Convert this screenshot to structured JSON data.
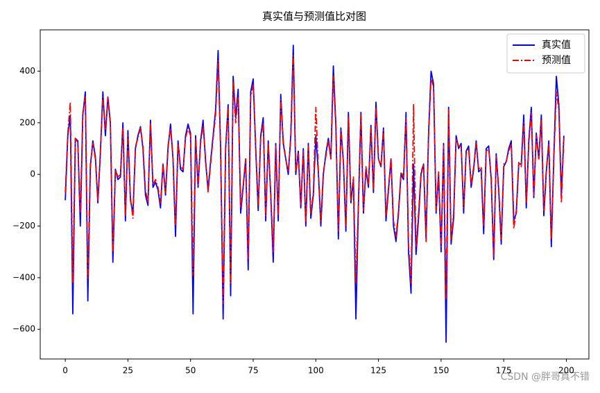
{
  "chart_data": {
    "type": "line",
    "title": "真实值与预测值比对图",
    "x": [
      0,
      1,
      2,
      3,
      4,
      5,
      6,
      7,
      8,
      9,
      10,
      11,
      12,
      13,
      14,
      15,
      16,
      17,
      18,
      19,
      20,
      21,
      22,
      23,
      24,
      25,
      26,
      27,
      28,
      29,
      30,
      31,
      32,
      33,
      34,
      35,
      36,
      37,
      38,
      39,
      40,
      41,
      42,
      43,
      44,
      45,
      46,
      47,
      48,
      49,
      50,
      51,
      52,
      53,
      54,
      55,
      56,
      57,
      58,
      59,
      60,
      61,
      62,
      63,
      64,
      65,
      66,
      67,
      68,
      69,
      70,
      71,
      72,
      73,
      74,
      75,
      76,
      77,
      78,
      79,
      80,
      81,
      82,
      83,
      84,
      85,
      86,
      87,
      88,
      89,
      90,
      91,
      92,
      93,
      94,
      95,
      96,
      97,
      98,
      99,
      100,
      101,
      102,
      103,
      104,
      105,
      106,
      107,
      108,
      109,
      110,
      111,
      112,
      113,
      114,
      115,
      116,
      117,
      118,
      119,
      120,
      121,
      122,
      123,
      124,
      125,
      126,
      127,
      128,
      129,
      130,
      131,
      132,
      133,
      134,
      135,
      136,
      137,
      138,
      139,
      140,
      141,
      142,
      143,
      144,
      145,
      146,
      147,
      148,
      149,
      150,
      151,
      152,
      153,
      154,
      155,
      156,
      157,
      158,
      159,
      160,
      161,
      162,
      163,
      164,
      165,
      166,
      167,
      168,
      169,
      170,
      171,
      172,
      173,
      174,
      175,
      176,
      177,
      178,
      179,
      180,
      181,
      182,
      183,
      184,
      185,
      186,
      187,
      188,
      189,
      190,
      191,
      192,
      193,
      194,
      195,
      196,
      197,
      198,
      199
    ],
    "series": [
      {
        "name": "真实值",
        "color": "#0000ff",
        "dash": "solid",
        "values": [
          -100,
          150,
          230,
          -540,
          140,
          130,
          -200,
          230,
          320,
          -490,
          30,
          130,
          70,
          -110,
          80,
          320,
          150,
          300,
          200,
          -340,
          20,
          -20,
          -10,
          200,
          -180,
          170,
          -100,
          -150,
          100,
          150,
          185,
          100,
          -80,
          -120,
          210,
          -50,
          -30,
          -60,
          -130,
          40,
          -80,
          100,
          195,
          60,
          -240,
          130,
          20,
          10,
          150,
          195,
          160,
          -540,
          150,
          -50,
          130,
          210,
          50,
          -60,
          50,
          150,
          250,
          480,
          100,
          -560,
          100,
          270,
          -470,
          380,
          220,
          330,
          -150,
          -50,
          60,
          -370,
          320,
          370,
          100,
          -140,
          150,
          220,
          -180,
          130,
          -80,
          -340,
          120,
          -180,
          310,
          120,
          60,
          0,
          150,
          500,
          0,
          90,
          -130,
          100,
          -200,
          120,
          -170,
          -80,
          150,
          10,
          -200,
          0,
          80,
          140,
          60,
          420,
          190,
          -250,
          180,
          50,
          -220,
          240,
          -110,
          -20,
          -560,
          -120,
          240,
          -150,
          20,
          -50,
          190,
          -70,
          280,
          60,
          30,
          180,
          -180,
          -60,
          60,
          -200,
          -260,
          -150,
          0,
          -20,
          240,
          -300,
          -460,
          40,
          -310,
          -170,
          0,
          40,
          -250,
          160,
          400,
          350,
          -150,
          0,
          -300,
          120,
          -650,
          260,
          -270,
          -170,
          150,
          100,
          120,
          -150,
          90,
          110,
          -50,
          20,
          130,
          10,
          20,
          -230,
          100,
          110,
          -20,
          -330,
          80,
          -60,
          -270,
          30,
          50,
          100,
          130,
          -180,
          -150,
          40,
          40,
          230,
          -130,
          130,
          260,
          -90,
          160,
          60,
          230,
          -160,
          10,
          130,
          -280,
          70,
          380,
          270,
          -80,
          150
        ]
      },
      {
        "name": "预测值",
        "color": "#ff0000",
        "dash": "dashdot",
        "values": [
          -70,
          160,
          280,
          -420,
          140,
          120,
          -150,
          240,
          300,
          -400,
          40,
          120,
          60,
          -100,
          90,
          300,
          170,
          300,
          190,
          -300,
          20,
          -10,
          0,
          180,
          -160,
          150,
          -90,
          -170,
          110,
          140,
          180,
          110,
          -60,
          -110,
          200,
          -40,
          -20,
          -50,
          -110,
          40,
          -70,
          110,
          180,
          60,
          -200,
          120,
          30,
          20,
          140,
          180,
          150,
          -390,
          140,
          -40,
          120,
          190,
          60,
          -70,
          40,
          140,
          230,
          440,
          90,
          -500,
          110,
          260,
          -420,
          360,
          200,
          300,
          -130,
          -40,
          60,
          -330,
          300,
          350,
          110,
          -120,
          140,
          200,
          -160,
          120,
          -70,
          -300,
          110,
          -160,
          290,
          130,
          60,
          10,
          140,
          460,
          10,
          80,
          -120,
          90,
          -180,
          110,
          -150,
          -70,
          260,
          20,
          -180,
          10,
          70,
          130,
          60,
          380,
          180,
          -220,
          170,
          50,
          -200,
          220,
          -100,
          -10,
          -420,
          -110,
          230,
          -140,
          30,
          -40,
          180,
          -60,
          260,
          60,
          30,
          170,
          -160,
          -50,
          60,
          -180,
          -240,
          -140,
          10,
          -10,
          220,
          -270,
          -420,
          270,
          -280,
          -150,
          10,
          40,
          -260,
          150,
          370,
          340,
          -140,
          10,
          -280,
          110,
          -480,
          250,
          -250,
          -150,
          140,
          110,
          110,
          -130,
          80,
          100,
          -40,
          30,
          120,
          20,
          30,
          -200,
          90,
          100,
          -10,
          -320,
          70,
          -50,
          -250,
          40,
          50,
          90,
          120,
          -210,
          -140,
          50,
          30,
          200,
          -110,
          120,
          240,
          -80,
          150,
          60,
          210,
          -140,
          20,
          120,
          -250,
          60,
          320,
          250,
          -110,
          140
        ]
      }
    ],
    "xlim": [
      -10,
      209
    ],
    "ylim": [
      -715,
      560
    ],
    "xticks": [
      0,
      25,
      50,
      75,
      100,
      125,
      150,
      175,
      200
    ],
    "yticks": [
      {
        "value": -600,
        "label": "−600"
      },
      {
        "value": -400,
        "label": "−400"
      },
      {
        "value": -200,
        "label": "−200"
      },
      0,
      200,
      400
    ],
    "legend": "upper right",
    "grid": false
  },
  "watermark": "CSDN @胖哥真不错"
}
